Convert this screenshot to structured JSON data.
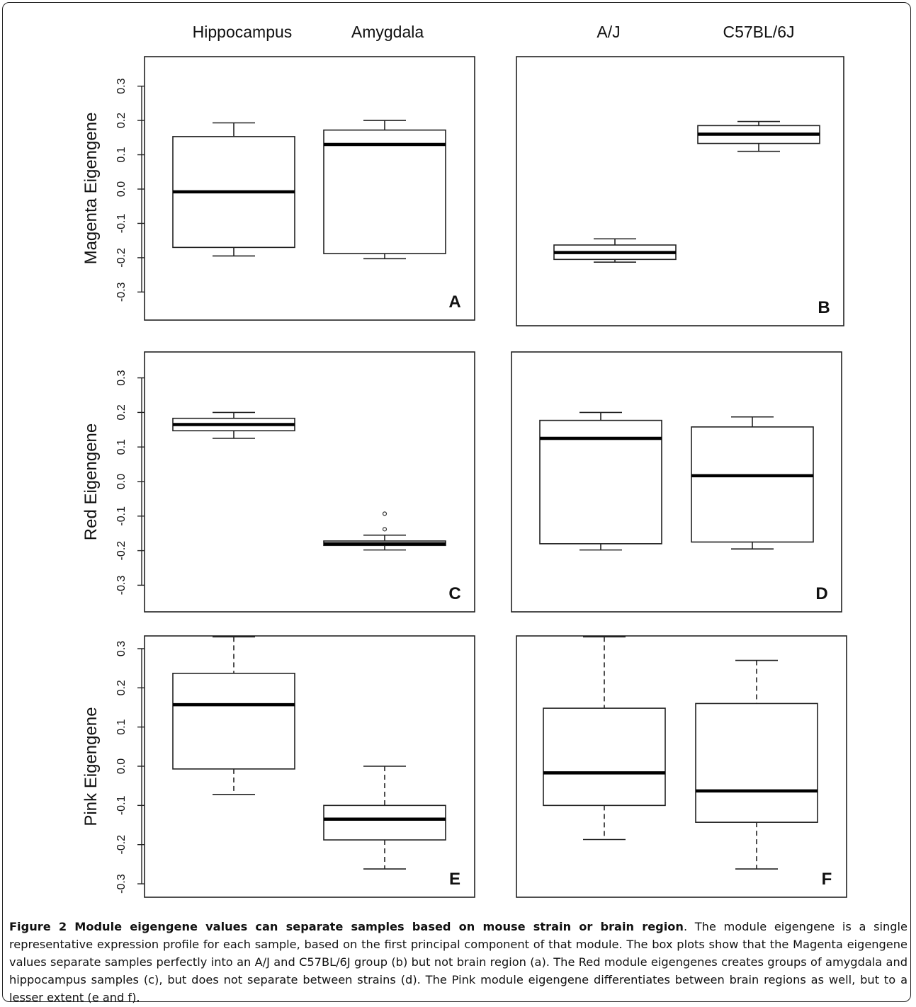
{
  "figure": {
    "column_headers": {
      "left": [
        "Hippocampus",
        "Amygdala"
      ],
      "right": [
        "A/J",
        "C57BL/6J"
      ]
    },
    "caption_title": "Figure 2 Module eigengene values can separate samples based on mouse strain or brain region",
    "caption_body": ". The module eigengene is a single representative expression profile for each sample, based on the first principal component of that module. The box plots show that the Magenta eigengene values separate samples perfectly into an A/J and C57BL/6J group (b) but not brain region (a). The Red module eigengenes creates groups of amygdala and hippocampus samples (c), but does not separate between strains (d). The Pink module eigengene differentiates between brain regions as well, but to a lesser extent (e and f)."
  },
  "chart_data": [
    {
      "type": "box",
      "panel": "A",
      "ylabel": "Magenta Eigengene",
      "yticks": [
        -0.3,
        -0.2,
        -0.1,
        0.0,
        0.1,
        0.2,
        0.3
      ],
      "ylim": [
        -0.38,
        0.38
      ],
      "categories": [
        "Hippocampus",
        "Amygdala"
      ],
      "boxes": [
        {
          "min": -0.195,
          "q1": -0.17,
          "median": -0.008,
          "q3": 0.153,
          "max": 0.193,
          "outliers": []
        },
        {
          "min": -0.203,
          "q1": -0.188,
          "median": 0.13,
          "q3": 0.172,
          "max": 0.2,
          "outliers": []
        }
      ]
    },
    {
      "type": "box",
      "panel": "B",
      "ylabel": "",
      "yticks": [],
      "ylim": [
        -0.38,
        0.38
      ],
      "categories": [
        "A/J",
        "C57BL/6J"
      ],
      "boxes": [
        {
          "min": -0.213,
          "q1": -0.205,
          "median": -0.185,
          "q3": -0.163,
          "max": -0.145,
          "outliers": []
        },
        {
          "min": 0.11,
          "q1": 0.133,
          "median": 0.16,
          "q3": 0.185,
          "max": 0.197,
          "outliers": []
        }
      ]
    },
    {
      "type": "box",
      "panel": "C",
      "ylabel": "Red Eigengene",
      "yticks": [
        -0.3,
        -0.2,
        -0.1,
        0.0,
        0.1,
        0.2,
        0.3
      ],
      "ylim": [
        -0.38,
        0.38
      ],
      "categories": [
        "Hippocampus",
        "Amygdala"
      ],
      "boxes": [
        {
          "min": 0.125,
          "q1": 0.147,
          "median": 0.165,
          "q3": 0.183,
          "max": 0.2,
          "outliers": []
        },
        {
          "min": -0.198,
          "q1": -0.185,
          "median": -0.18,
          "q3": -0.172,
          "max": -0.155,
          "outliers": [
            -0.093,
            -0.138
          ]
        }
      ]
    },
    {
      "type": "box",
      "panel": "D",
      "ylabel": "",
      "yticks": [],
      "ylim": [
        -0.38,
        0.38
      ],
      "categories": [
        "A/J",
        "C57BL/6J"
      ],
      "boxes": [
        {
          "min": -0.198,
          "q1": -0.18,
          "median": 0.125,
          "q3": 0.177,
          "max": 0.2,
          "outliers": []
        },
        {
          "min": -0.195,
          "q1": -0.175,
          "median": 0.017,
          "q3": 0.158,
          "max": 0.187,
          "outliers": []
        }
      ]
    },
    {
      "type": "box",
      "panel": "E",
      "ylabel": "Pink Eigengene",
      "yticks": [
        -0.3,
        -0.2,
        -0.1,
        0.0,
        0.1,
        0.2,
        0.3
      ],
      "ylim": [
        -0.38,
        0.38
      ],
      "categories": [
        "Hippocampus",
        "Amygdala"
      ],
      "boxes": [
        {
          "min": -0.072,
          "q1": -0.007,
          "median": 0.157,
          "q3": 0.237,
          "max": 0.33,
          "outliers": []
        },
        {
          "min": -0.262,
          "q1": -0.188,
          "median": -0.135,
          "q3": -0.1,
          "max": 0.0,
          "outliers": []
        }
      ]
    },
    {
      "type": "box",
      "panel": "F",
      "ylabel": "",
      "yticks": [],
      "ylim": [
        -0.38,
        0.38
      ],
      "categories": [
        "A/J",
        "C57BL/6J"
      ],
      "boxes": [
        {
          "min": -0.187,
          "q1": -0.1,
          "median": -0.017,
          "q3": 0.148,
          "max": 0.33,
          "outliers": []
        },
        {
          "min": -0.262,
          "q1": -0.143,
          "median": -0.063,
          "q3": 0.16,
          "max": 0.27,
          "outliers": []
        }
      ]
    }
  ]
}
